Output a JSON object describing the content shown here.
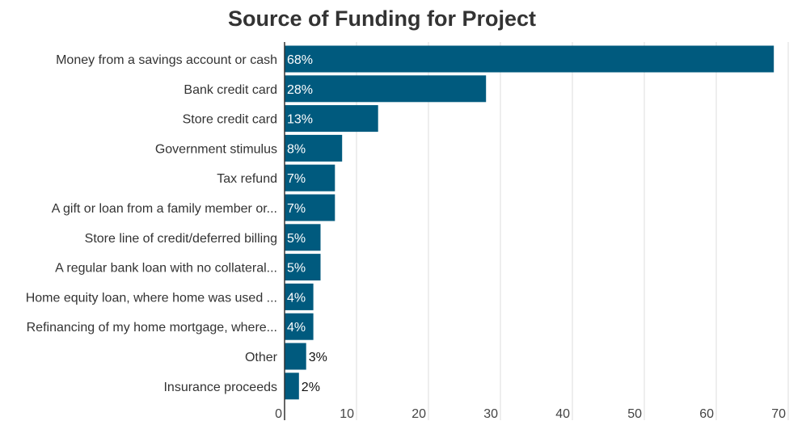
{
  "chart_data": {
    "type": "bar",
    "orientation": "horizontal",
    "title": "Source of Funding for Project",
    "xlabel": "",
    "ylabel": "",
    "xlim": [
      0,
      70
    ],
    "x_ticks": [
      0,
      10,
      20,
      30,
      40,
      50,
      60,
      70
    ],
    "grid": "vertical",
    "bar_color": "#005a7e",
    "categories": [
      "Money from a savings account or cash",
      "Bank credit card",
      "Store credit card",
      "Government stimulus",
      "Tax refund",
      "A gift or loan from a family member or...",
      "Store line of credit/deferred billing",
      "A regular bank loan with no collateral...",
      "Home equity loan, where home was used ...",
      "Refinancing of my home mortgage, where...",
      "Other",
      "Insurance proceeds"
    ],
    "values": [
      68,
      28,
      13,
      8,
      7,
      7,
      5,
      5,
      4,
      4,
      3,
      2
    ],
    "data_labels": [
      "68%",
      "28%",
      "13%",
      "8%",
      "7%",
      "7%",
      "5%",
      "5%",
      "4%",
      "4%",
      "3%",
      "2%"
    ]
  }
}
